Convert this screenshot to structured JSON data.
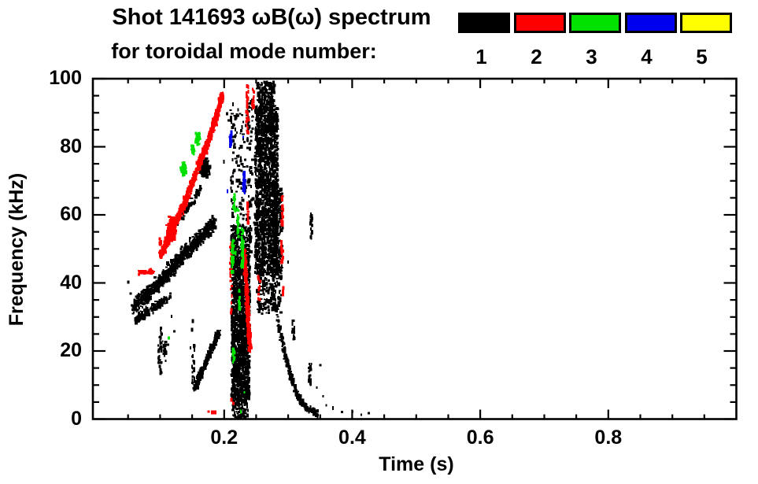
{
  "header": {
    "title_line1": "Shot 141693 ωB(ω) spectrum",
    "subtitle": "for toroidal mode number:"
  },
  "legend": {
    "entries": [
      {
        "label": "1",
        "color": "#000000"
      },
      {
        "label": "2",
        "color": "#ff0000"
      },
      {
        "label": "3",
        "color": "#00e100"
      },
      {
        "label": "4",
        "color": "#0000ee"
      },
      {
        "label": "5",
        "color": "#ffff00"
      }
    ]
  },
  "chart_data": {
    "type": "scatter",
    "title": "Shot 141693 ωB(ω) spectrum for toroidal mode number: 1-5",
    "xlabel": "Time (s)",
    "ylabel": "Frequency (kHz)",
    "xlim": [
      -0.005,
      1.0
    ],
    "ylim": [
      0,
      100
    ],
    "grid": false,
    "legend_position": "top-right",
    "x_ticks": [
      {
        "v": 0.2,
        "label": "0.2"
      },
      {
        "v": 0.4,
        "label": "0.4"
      },
      {
        "v": 0.6,
        "label": "0.6"
      },
      {
        "v": 0.8,
        "label": "0.8"
      }
    ],
    "x_minor_step": 0.05,
    "y_ticks": [
      {
        "v": 0,
        "label": "0"
      },
      {
        "v": 20,
        "label": "20"
      },
      {
        "v": 40,
        "label": "40"
      },
      {
        "v": 60,
        "label": "60"
      },
      {
        "v": 80,
        "label": "80"
      },
      {
        "v": 100,
        "label": "100"
      }
    ],
    "y_minor_step": 5,
    "mode_colors": {
      "1": "#000000",
      "2": "#ff0000",
      "3": "#00e100",
      "4": "#0000ee",
      "5": "#ffff00"
    },
    "features": [
      {
        "mode": 1,
        "type": "curve",
        "pts": [
          [
            0.058,
            33
          ],
          [
            0.1,
            40
          ],
          [
            0.14,
            49
          ],
          [
            0.185,
            57.5
          ]
        ],
        "wf": 5.5,
        "n": 780
      },
      {
        "mode": 1,
        "type": "band",
        "t0": 0.062,
        "f0": 29,
        "t1": 0.115,
        "f1": 36,
        "wf": 3.5,
        "n": 150
      },
      {
        "mode": 1,
        "type": "dash",
        "t": 0.1,
        "f0": 13,
        "f1": 28,
        "n": 34,
        "wt": 0.006
      },
      {
        "mode": 1,
        "type": "blob",
        "t": 0.108,
        "f": 20,
        "rt": 0.005,
        "rf": 4,
        "n": 22
      },
      {
        "mode": 1,
        "type": "band",
        "t0": 0.128,
        "f0": 58,
        "t1": 0.165,
        "f1": 68,
        "wf": 3,
        "n": 60
      },
      {
        "mode": 1,
        "type": "blob",
        "t": 0.169,
        "f": 74,
        "rt": 0.011,
        "rf": 3.5,
        "n": 210
      },
      {
        "mode": 1,
        "type": "band",
        "t0": 0.154,
        "f0": 9,
        "t1": 0.193,
        "f1": 26,
        "wf": 3,
        "n": 280
      },
      {
        "mode": 1,
        "type": "dash",
        "t": 0.152,
        "f0": 9,
        "f1": 22,
        "n": 26,
        "wt": 0.004
      },
      {
        "mode": 1,
        "type": "column",
        "t0": 0.212,
        "t1": 0.24,
        "f0": 5,
        "f1": 48,
        "n": 1500
      },
      {
        "mode": 1,
        "type": "column",
        "t0": 0.211,
        "t1": 0.242,
        "f0": 48,
        "f1": 57,
        "n": 200
      },
      {
        "mode": 1,
        "type": "column",
        "t0": 0.21,
        "t1": 0.245,
        "f0": 57,
        "f1": 94,
        "n": 150
      },
      {
        "mode": 1,
        "type": "column",
        "t0": 0.213,
        "t1": 0.237,
        "f0": 0.5,
        "f1": 5,
        "n": 70
      },
      {
        "mode": 1,
        "type": "column",
        "t0": 0.2485,
        "t1": 0.284,
        "f0": 43,
        "f1": 92,
        "n": 1600
      },
      {
        "mode": 1,
        "type": "column",
        "t0": 0.252,
        "t1": 0.279,
        "f0": 92,
        "f1": 99,
        "n": 150
      },
      {
        "mode": 1,
        "type": "column",
        "t0": 0.251,
        "t1": 0.29,
        "f0": 31,
        "f1": 43,
        "n": 160
      },
      {
        "mode": 1,
        "type": "column",
        "t0": 0.277,
        "t1": 0.291,
        "f0": 43,
        "f1": 68,
        "n": 200
      },
      {
        "mode": 1,
        "type": "curve",
        "pts": [
          [
            0.274,
            40
          ],
          [
            0.285,
            28
          ],
          [
            0.295,
            19
          ],
          [
            0.305,
            12
          ],
          [
            0.317,
            6
          ],
          [
            0.33,
            3
          ],
          [
            0.347,
            1.5
          ]
        ],
        "wf": 2.5,
        "n": 300
      },
      {
        "mode": 1,
        "type": "dash",
        "t": 0.308,
        "f0": 23,
        "f1": 29,
        "n": 20,
        "wt": 0.004
      },
      {
        "mode": 1,
        "type": "dash",
        "t": 0.334,
        "f0": 10,
        "f1": 17,
        "n": 20,
        "wt": 0.004
      },
      {
        "mode": 1,
        "type": "dash",
        "t": 0.336,
        "f0": 53,
        "f1": 61,
        "n": 22,
        "wt": 0.003
      },
      {
        "mode": 1,
        "type": "dash",
        "t": 0.238,
        "f0": 85,
        "f1": 92,
        "n": 10,
        "wt": 0.003
      },
      {
        "mode": 1,
        "type": "specks",
        "pts": [
          [
            0.05,
            40
          ],
          [
            0.054,
            36.5
          ],
          [
            0.118,
            30
          ],
          [
            0.123,
            26
          ],
          [
            0.149,
            26
          ],
          [
            0.151,
            28.5
          ],
          [
            0.147,
            21
          ],
          [
            0.2,
            76
          ],
          [
            0.204,
            90
          ],
          [
            0.207,
            87.5
          ],
          [
            0.243,
            56
          ],
          [
            0.246,
            57.5
          ],
          [
            0.3,
            46
          ],
          [
            0.345,
            9
          ],
          [
            0.35,
            16
          ],
          [
            0.355,
            6.5
          ],
          [
            0.36,
            4
          ],
          [
            0.37,
            3
          ],
          [
            0.385,
            1.8
          ],
          [
            0.4,
            2.3
          ],
          [
            0.414,
            1.5
          ],
          [
            0.425,
            1.9
          ]
        ]
      },
      {
        "mode": 2,
        "type": "curve",
        "pts": [
          [
            0.108,
            51
          ],
          [
            0.122,
            57
          ],
          [
            0.14,
            64
          ],
          [
            0.157,
            73
          ],
          [
            0.172,
            80
          ],
          [
            0.186,
            88
          ],
          [
            0.198,
            95.5
          ]
        ],
        "wf": 3.6,
        "n": 900
      },
      {
        "mode": 2,
        "type": "blob",
        "t": 0.118,
        "f": 56,
        "rt": 0.009,
        "rf": 4.5,
        "n": 230
      },
      {
        "mode": 2,
        "type": "band",
        "t0": 0.1,
        "f0": 48,
        "t1": 0.115,
        "f1": 53,
        "wf": 3,
        "n": 90
      },
      {
        "mode": 2,
        "type": "band",
        "t0": 0.066,
        "f0": 43,
        "t1": 0.092,
        "f1": 43.5,
        "wf": 1.5,
        "n": 45
      },
      {
        "mode": 2,
        "type": "dash",
        "t": 0.101,
        "f0": 51,
        "f1": 53,
        "n": 8,
        "wt": 0.003
      },
      {
        "mode": 2,
        "type": "band",
        "t0": 0.2315,
        "f0": 49,
        "t1": 0.2405,
        "f1": 20,
        "wf": 2.3,
        "n": 330
      },
      {
        "mode": 2,
        "type": "dash",
        "t": 0.2105,
        "f0": 31,
        "f1": 52,
        "n": 26,
        "wt": 0.003
      },
      {
        "mode": 2,
        "type": "dash",
        "t": 0.2365,
        "f0": 84,
        "f1": 98,
        "n": 34,
        "wt": 0.0035
      },
      {
        "mode": 2,
        "type": "dash",
        "t": 0.2455,
        "f0": 91,
        "f1": 97,
        "n": 16,
        "wt": 0.003
      },
      {
        "mode": 2,
        "type": "dash",
        "t": 0.2375,
        "f0": 57,
        "f1": 64,
        "n": 16,
        "wt": 0.003
      },
      {
        "mode": 2,
        "type": "dash",
        "t": 0.2545,
        "f0": 35,
        "f1": 42,
        "n": 12,
        "wt": 0.003
      },
      {
        "mode": 2,
        "type": "dash",
        "t": 0.291,
        "f0": 56,
        "f1": 66,
        "n": 24,
        "wt": 0.0035
      },
      {
        "mode": 2,
        "type": "dash",
        "t": 0.2905,
        "f0": 45,
        "f1": 52,
        "n": 16,
        "wt": 0.003
      },
      {
        "mode": 2,
        "type": "dash",
        "t": 0.293,
        "f0": 36,
        "f1": 39,
        "n": 7,
        "wt": 0.0025
      },
      {
        "mode": 2,
        "type": "dot",
        "t": 0.184,
        "f": 2,
        "w": 7,
        "h": 5
      },
      {
        "mode": 2,
        "type": "dot",
        "t": 0.1755,
        "f": 2.2,
        "w": 3,
        "h": 3
      },
      {
        "mode": 2,
        "type": "specks",
        "pts": [
          [
            0.212,
            5.5
          ],
          [
            0.215,
            5
          ]
        ]
      },
      {
        "mode": 3,
        "type": "blob",
        "t": 0.1365,
        "f": 73.5,
        "rt": 0.006,
        "rf": 2.5,
        "n": 70
      },
      {
        "mode": 3,
        "type": "blob",
        "t": 0.151,
        "f": 79,
        "rt": 0.004,
        "rf": 2,
        "n": 40
      },
      {
        "mode": 3,
        "type": "blob",
        "t": 0.159,
        "f": 82.5,
        "rt": 0.005,
        "rf": 2.5,
        "n": 60
      },
      {
        "mode": 3,
        "type": "dash",
        "t": 0.2135,
        "f0": 43,
        "f1": 53,
        "n": 34,
        "wt": 0.004
      },
      {
        "mode": 3,
        "type": "dash",
        "t": 0.216,
        "f0": 61,
        "f1": 66,
        "n": 18,
        "wt": 0.003
      },
      {
        "mode": 3,
        "type": "dash",
        "t": 0.222,
        "f0": 53,
        "f1": 62,
        "n": 26,
        "wt": 0.003
      },
      {
        "mode": 3,
        "type": "dash",
        "t": 0.2285,
        "f0": 44,
        "f1": 56,
        "n": 46,
        "wt": 0.0035
      },
      {
        "mode": 3,
        "type": "dash",
        "t": 0.2245,
        "f0": 32,
        "f1": 38,
        "n": 18,
        "wt": 0.003
      },
      {
        "mode": 3,
        "type": "dash",
        "t": 0.2145,
        "f0": 16,
        "f1": 21,
        "n": 14,
        "wt": 0.003
      },
      {
        "mode": 3,
        "type": "specks",
        "pts": [
          [
            0.114,
            23.8
          ],
          [
            0.227,
            2.5
          ],
          [
            0.2315,
            8
          ],
          [
            0.219,
            48.5
          ]
        ]
      },
      {
        "mode": 4,
        "type": "dash",
        "t": 0.2105,
        "f0": 80,
        "f1": 84.5,
        "n": 20,
        "wt": 0.0028
      },
      {
        "mode": 4,
        "type": "dash",
        "t": 0.2315,
        "f0": 66,
        "f1": 72.5,
        "n": 22,
        "wt": 0.0032
      },
      {
        "mode": 4,
        "type": "specks",
        "pts": [
          [
            0.2295,
            83
          ],
          [
            0.2045,
            67
          ]
        ]
      }
    ]
  }
}
